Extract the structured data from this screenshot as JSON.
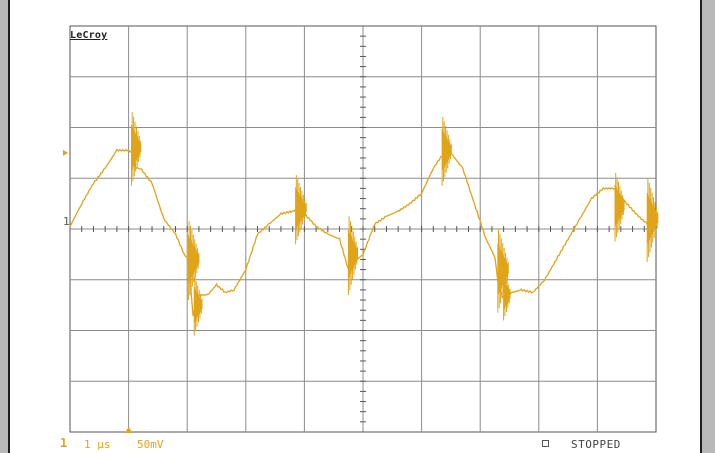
{
  "brand": "LeCroy",
  "status_bar": {
    "channel": "1",
    "timebase": "1 μs",
    "volts_per_div": "50mV",
    "acquisition": "STOPPED"
  },
  "markers": {
    "channel_ground_label": "1"
  },
  "colors": {
    "trace": "#e0a419",
    "grid": "#8c8c8c",
    "background": "#ffffff",
    "side": "#b9b9b9"
  },
  "chart_data": {
    "type": "line",
    "grid": true,
    "x_divisions": 10,
    "y_divisions": 8,
    "series": [
      {
        "x": [
          0,
          0.2,
          0.4,
          0.6,
          0.8,
          1.0,
          1.07,
          1.12,
          1.2,
          1.4,
          1.6,
          1.8,
          1.95,
          2.02,
          2.1,
          2.2,
          2.35,
          2.5,
          2.65,
          2.8,
          3.0,
          3.2,
          3.4,
          3.6,
          3.8,
          3.9,
          4.0,
          4.2,
          4.4,
          4.6,
          4.75,
          4.85,
          5.0,
          5.2,
          5.4,
          5.6,
          5.8,
          6.0,
          6.2,
          6.35,
          6.5,
          6.7,
          6.9,
          7.1,
          7.25,
          7.32,
          7.4,
          7.55,
          7.7,
          7.9,
          8.1,
          8.3,
          8.5,
          8.7,
          8.9,
          9.1,
          9.3,
          9.5,
          9.7,
          9.85,
          10.0
        ],
        "y": [
          0.05,
          0.5,
          0.9,
          1.2,
          1.55,
          1.55,
          1.5,
          1.2,
          1.2,
          0.9,
          0.2,
          -0.1,
          -0.5,
          -0.6,
          -1.7,
          -1.3,
          -1.3,
          -1.1,
          -1.25,
          -1.2,
          -0.8,
          -0.1,
          0.1,
          0.3,
          0.35,
          0.4,
          0.3,
          0.05,
          -0.1,
          -0.2,
          -0.8,
          -0.65,
          -0.5,
          0.1,
          0.25,
          0.35,
          0.5,
          0.7,
          1.2,
          1.45,
          1.5,
          1.2,
          0.5,
          -0.2,
          -0.55,
          -1.2,
          -1.35,
          -1.25,
          -1.2,
          -1.25,
          -1.0,
          -0.6,
          -0.2,
          0.2,
          0.6,
          0.8,
          0.8,
          0.5,
          0.25,
          0.1,
          0.05
        ]
      }
    ]
  }
}
